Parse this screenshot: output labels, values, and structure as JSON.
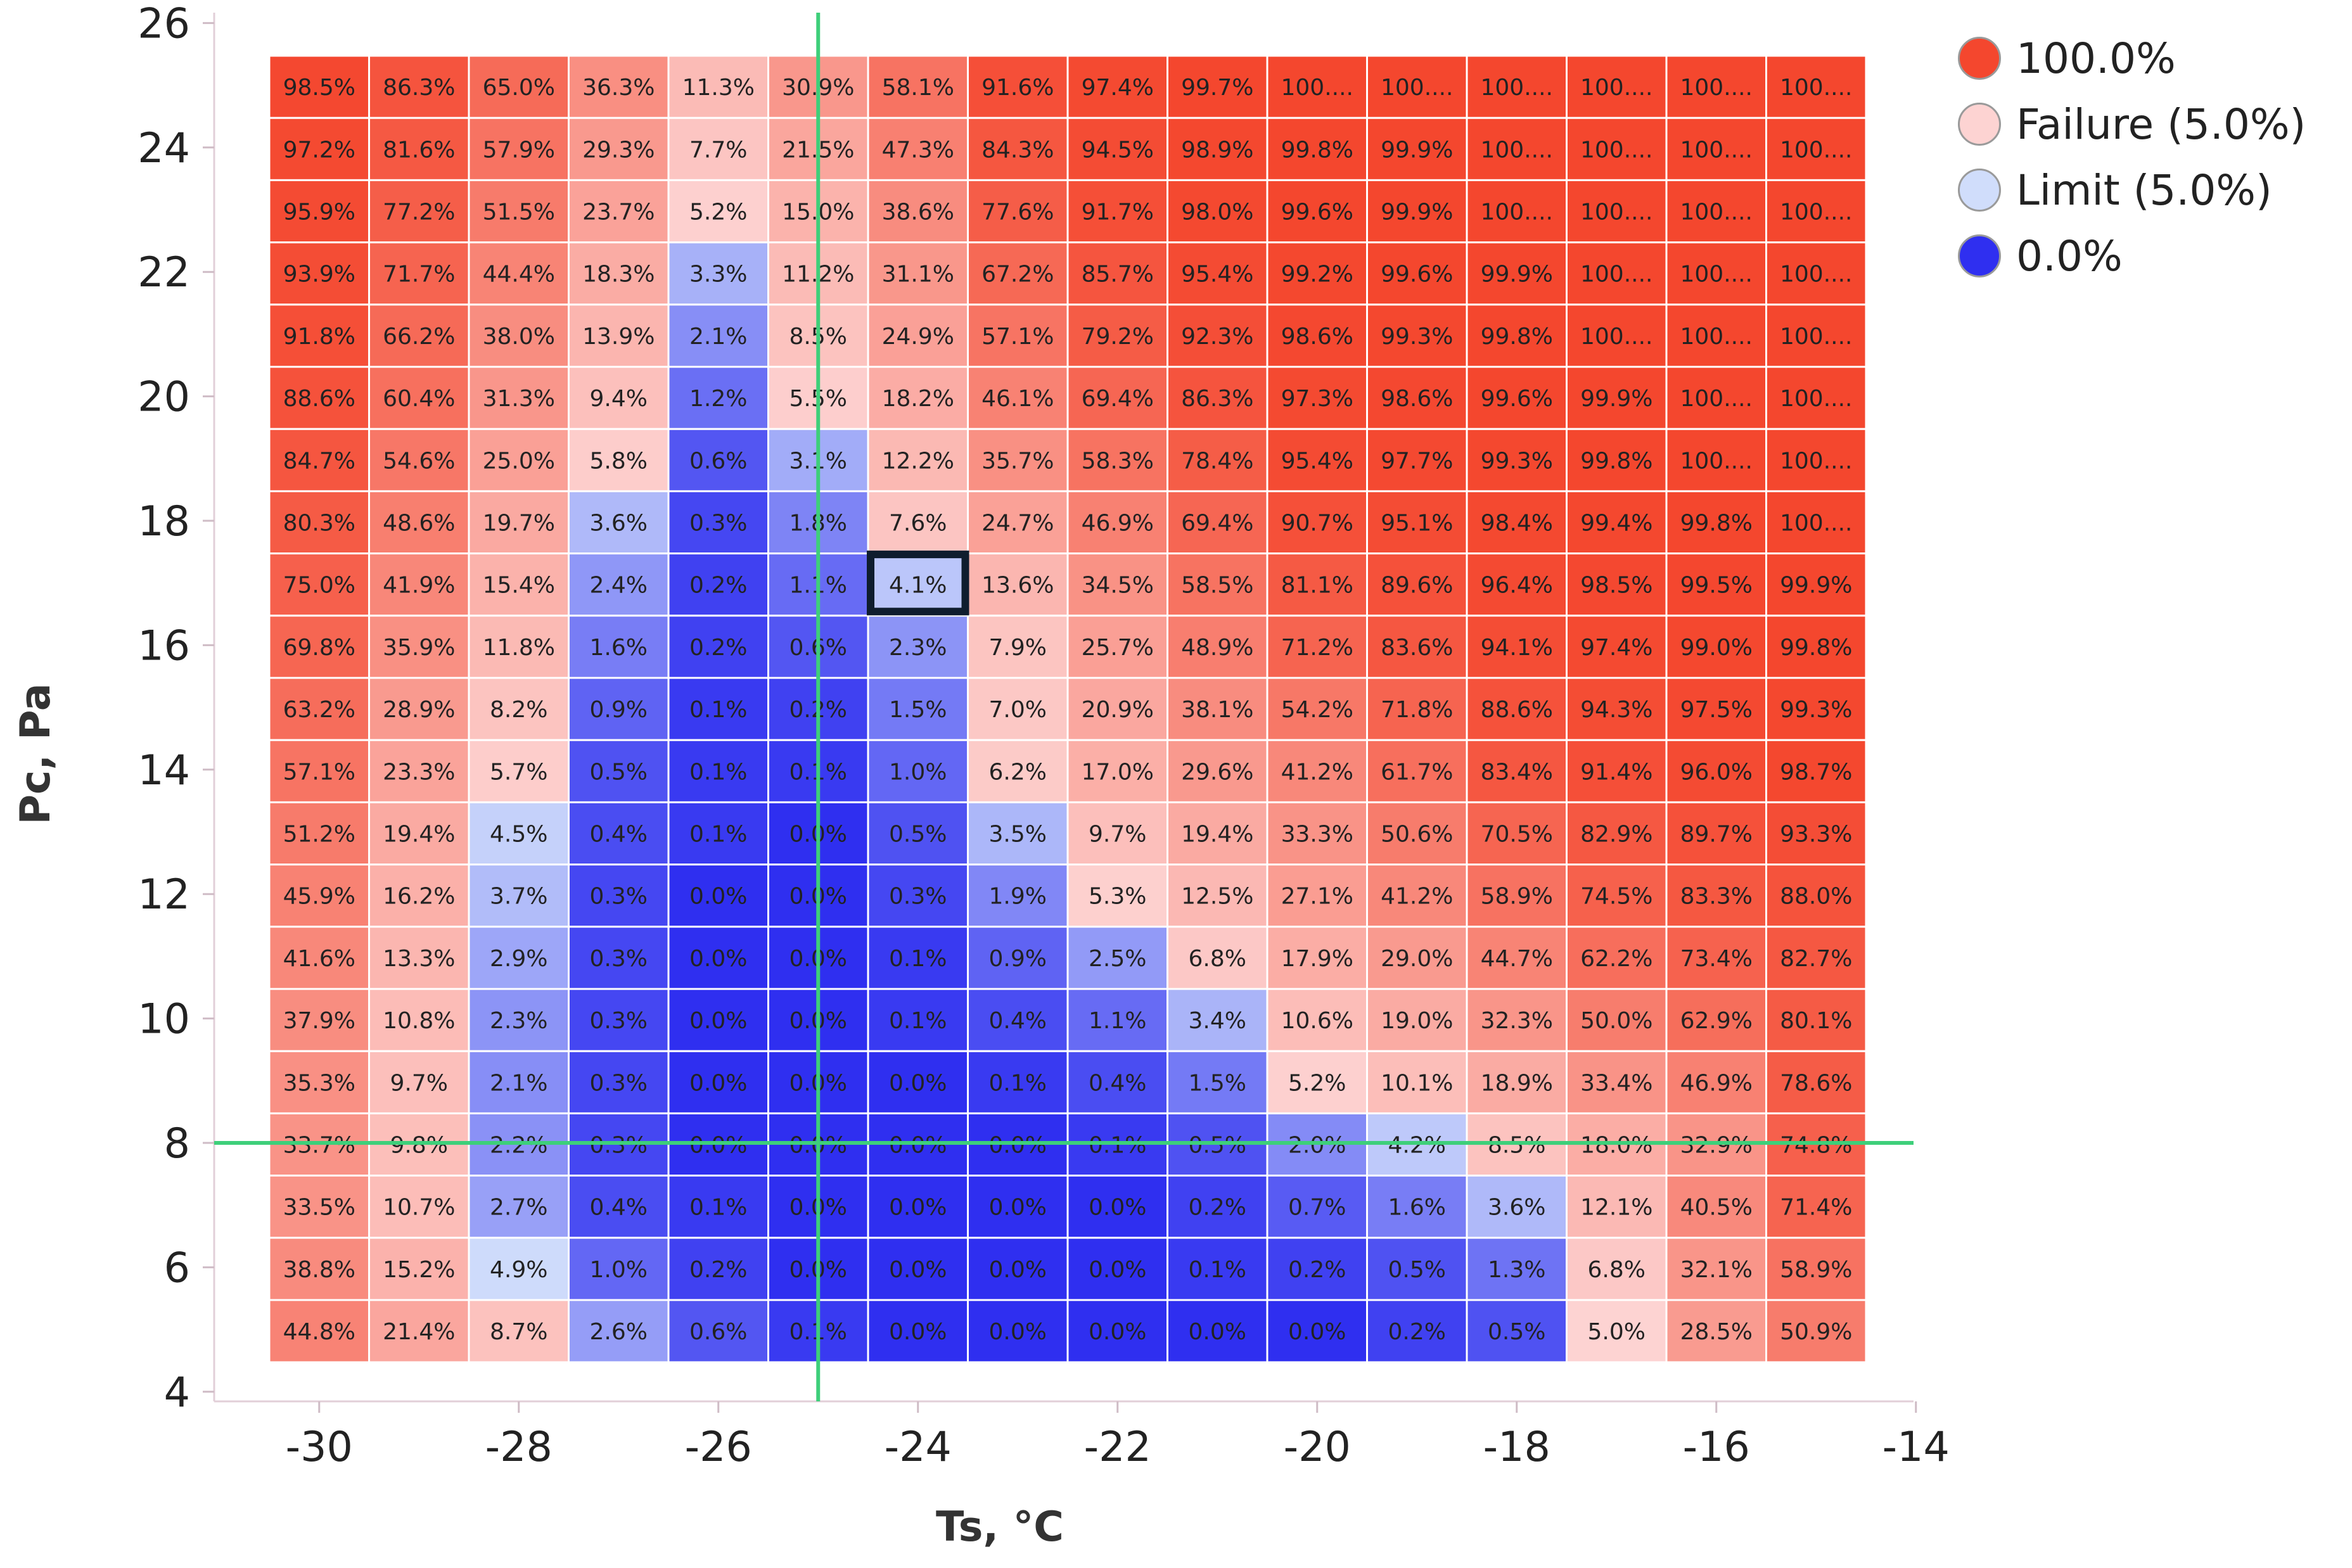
{
  "chart_data": {
    "type": "heatmap",
    "x": [
      -30,
      -29,
      -28,
      -27,
      -26,
      -25,
      -24,
      -23,
      -22,
      -21,
      -20,
      -19,
      -18,
      -17,
      -16,
      -15
    ],
    "y": [
      26,
      24,
      23,
      22,
      21,
      20,
      19,
      18,
      17,
      16,
      15,
      14,
      13,
      12,
      11,
      10,
      9,
      8,
      7,
      6,
      5
    ],
    "rows": [
      [
        "98.5%",
        "86.3%",
        "65.0%",
        "36.3%",
        "11.3%",
        "30.9%",
        "58.1%",
        "91.6%",
        "97.4%",
        "99.7%",
        "100....",
        "100....",
        "100....",
        "100....",
        "100....",
        "100...."
      ],
      [
        "97.2%",
        "81.6%",
        "57.9%",
        "29.3%",
        "7.7%",
        "21.5%",
        "47.3%",
        "84.3%",
        "94.5%",
        "98.9%",
        "99.8%",
        "99.9%",
        "100....",
        "100....",
        "100....",
        "100...."
      ],
      [
        "95.9%",
        "77.2%",
        "51.5%",
        "23.7%",
        "5.2%",
        "15.0%",
        "38.6%",
        "77.6%",
        "91.7%",
        "98.0%",
        "99.6%",
        "99.9%",
        "100....",
        "100....",
        "100....",
        "100...."
      ],
      [
        "93.9%",
        "71.7%",
        "44.4%",
        "18.3%",
        "3.3%",
        "11.2%",
        "31.1%",
        "67.2%",
        "85.7%",
        "95.4%",
        "99.2%",
        "99.6%",
        "99.9%",
        "100....",
        "100....",
        "100...."
      ],
      [
        "91.8%",
        "66.2%",
        "38.0%",
        "13.9%",
        "2.1%",
        "8.5%",
        "24.9%",
        "57.1%",
        "79.2%",
        "92.3%",
        "98.6%",
        "99.3%",
        "99.8%",
        "100....",
        "100....",
        "100...."
      ],
      [
        "88.6%",
        "60.4%",
        "31.3%",
        "9.4%",
        "1.2%",
        "5.5%",
        "18.2%",
        "46.1%",
        "69.4%",
        "86.3%",
        "97.3%",
        "98.6%",
        "99.6%",
        "99.9%",
        "100....",
        "100...."
      ],
      [
        "84.7%",
        "54.6%",
        "25.0%",
        "5.8%",
        "0.6%",
        "3.1%",
        "12.2%",
        "35.7%",
        "58.3%",
        "78.4%",
        "95.4%",
        "97.7%",
        "99.3%",
        "99.8%",
        "100....",
        "100...."
      ],
      [
        "80.3%",
        "48.6%",
        "19.7%",
        "3.6%",
        "0.3%",
        "1.8%",
        "7.6%",
        "24.7%",
        "46.9%",
        "69.4%",
        "90.7%",
        "95.1%",
        "98.4%",
        "99.4%",
        "99.8%",
        "100...."
      ],
      [
        "75.0%",
        "41.9%",
        "15.4%",
        "2.4%",
        "0.2%",
        "1.1%",
        "4.1%",
        "13.6%",
        "34.5%",
        "58.5%",
        "81.1%",
        "89.6%",
        "96.4%",
        "98.5%",
        "99.5%",
        "99.9%"
      ],
      [
        "69.8%",
        "35.9%",
        "11.8%",
        "1.6%",
        "0.2%",
        "0.6%",
        "2.3%",
        "7.9%",
        "25.7%",
        "48.9%",
        "71.2%",
        "83.6%",
        "94.1%",
        "97.4%",
        "99.0%",
        "99.8%"
      ],
      [
        "63.2%",
        "28.9%",
        "8.2%",
        "0.9%",
        "0.1%",
        "0.2%",
        "1.5%",
        "7.0%",
        "20.9%",
        "38.1%",
        "54.2%",
        "71.8%",
        "88.6%",
        "94.3%",
        "97.5%",
        "99.3%"
      ],
      [
        "57.1%",
        "23.3%",
        "5.7%",
        "0.5%",
        "0.1%",
        "0.1%",
        "1.0%",
        "6.2%",
        "17.0%",
        "29.6%",
        "41.2%",
        "61.7%",
        "83.4%",
        "91.4%",
        "96.0%",
        "98.7%"
      ],
      [
        "51.2%",
        "19.4%",
        "4.5%",
        "0.4%",
        "0.1%",
        "0.0%",
        "0.5%",
        "3.5%",
        "9.7%",
        "19.4%",
        "33.3%",
        "50.6%",
        "70.5%",
        "82.9%",
        "89.7%",
        "93.3%"
      ],
      [
        "45.9%",
        "16.2%",
        "3.7%",
        "0.3%",
        "0.0%",
        "0.0%",
        "0.3%",
        "1.9%",
        "5.3%",
        "12.5%",
        "27.1%",
        "41.2%",
        "58.9%",
        "74.5%",
        "83.3%",
        "88.0%"
      ],
      [
        "41.6%",
        "13.3%",
        "2.9%",
        "0.3%",
        "0.0%",
        "0.0%",
        "0.1%",
        "0.9%",
        "2.5%",
        "6.8%",
        "17.9%",
        "29.0%",
        "44.7%",
        "62.2%",
        "73.4%",
        "82.7%"
      ],
      [
        "37.9%",
        "10.8%",
        "2.3%",
        "0.3%",
        "0.0%",
        "0.0%",
        "0.1%",
        "0.4%",
        "1.1%",
        "3.4%",
        "10.6%",
        "19.0%",
        "32.3%",
        "50.0%",
        "62.9%",
        "80.1%"
      ],
      [
        "35.3%",
        "9.7%",
        "2.1%",
        "0.3%",
        "0.0%",
        "0.0%",
        "0.0%",
        "0.1%",
        "0.4%",
        "1.5%",
        "5.2%",
        "10.1%",
        "18.9%",
        "33.4%",
        "46.9%",
        "78.6%"
      ],
      [
        "33.7%",
        "9.8%",
        "2.2%",
        "0.3%",
        "0.0%",
        "0.0%",
        "0.0%",
        "0.0%",
        "0.1%",
        "0.5%",
        "2.0%",
        "4.2%",
        "8.5%",
        "18.0%",
        "32.9%",
        "74.8%"
      ],
      [
        "33.5%",
        "10.7%",
        "2.7%",
        "0.4%",
        "0.1%",
        "0.0%",
        "0.0%",
        "0.0%",
        "0.0%",
        "0.2%",
        "0.7%",
        "1.6%",
        "3.6%",
        "12.1%",
        "40.5%",
        "71.4%"
      ],
      [
        "38.8%",
        "15.2%",
        "4.9%",
        "1.0%",
        "0.2%",
        "0.0%",
        "0.0%",
        "0.0%",
        "0.0%",
        "0.1%",
        "0.2%",
        "0.5%",
        "1.3%",
        "6.8%",
        "32.1%",
        "58.9%"
      ],
      [
        "44.8%",
        "21.4%",
        "8.7%",
        "2.6%",
        "0.6%",
        "0.1%",
        "0.0%",
        "0.0%",
        "0.0%",
        "0.0%",
        "0.0%",
        "0.2%",
        "0.5%",
        "5.0%",
        "28.5%",
        "50.9%"
      ]
    ],
    "xlabel": "Ts, °C",
    "ylabel": "Pc, Pa",
    "xticks": [
      "-30",
      "-28",
      "-26",
      "-24",
      "-22",
      "-20",
      "-18",
      "-16",
      "-14"
    ],
    "xtick_values": [
      -30,
      -28,
      -26,
      -24,
      -22,
      -20,
      -18,
      -16,
      -14
    ],
    "yticks": [
      "26",
      "24",
      "22",
      "20",
      "18",
      "16",
      "14",
      "12",
      "10",
      "8",
      "6",
      "4"
    ],
    "ytick_values": [
      26,
      24,
      22,
      20,
      18,
      16,
      14,
      12,
      10,
      8,
      6,
      4
    ],
    "xlim": [
      -31,
      -13.6
    ],
    "ylim": [
      3.6,
      26.6
    ],
    "crosshair": {
      "x": -25,
      "y": 8,
      "color": "#3ecf7a"
    },
    "highlight_cell": {
      "x": -24,
      "y": 17,
      "color": "#0f1d2e"
    },
    "color_scale": {
      "high": "#f4472e",
      "failure": "#fdd3d2",
      "limit": "#d0ddfb",
      "zero": "#2f2ff0",
      "failure_threshold": 5.0
    },
    "legend": {
      "position": "top-right",
      "items": [
        {
          "label": "100.0%",
          "color": "#f4472e"
        },
        {
          "label": "Failure (5.0%)",
          "color": "#fdd3d2"
        },
        {
          "label": "Limit (5.0%)",
          "color": "#d0ddfb"
        },
        {
          "label": "0.0%",
          "color": "#2f2ff0"
        }
      ]
    }
  }
}
